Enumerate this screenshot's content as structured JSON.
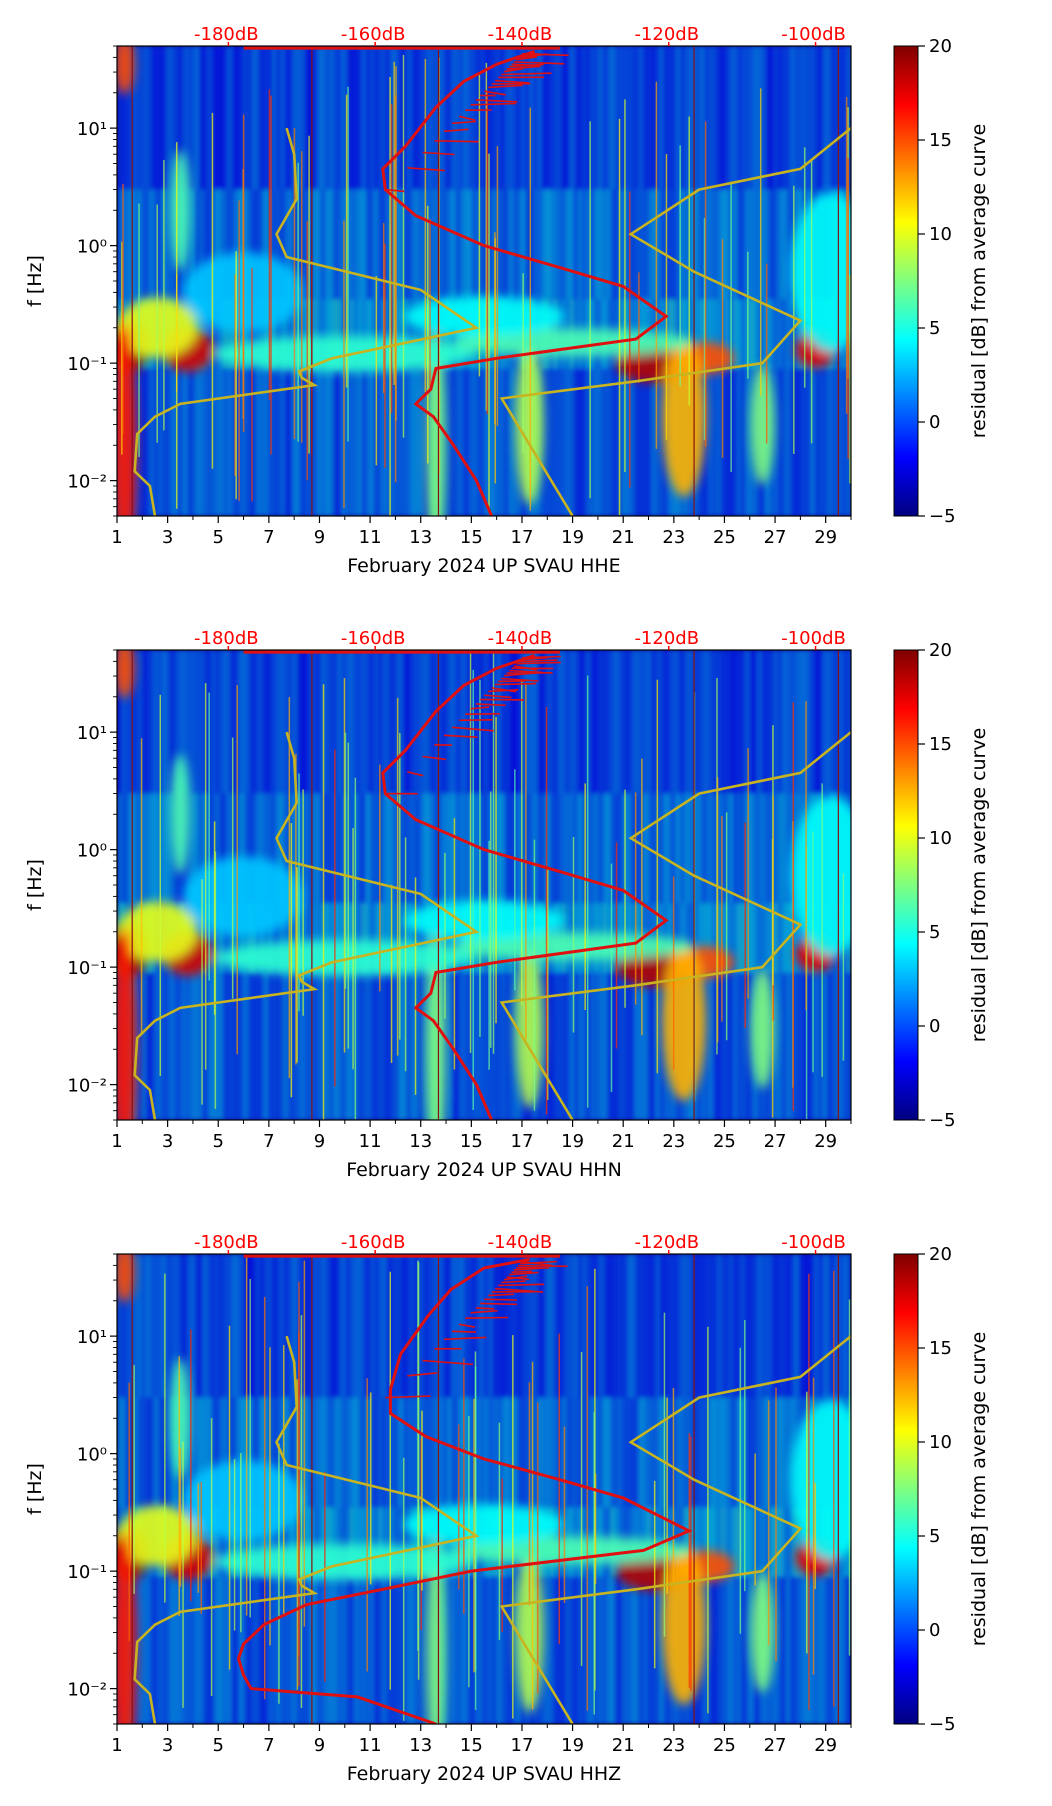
{
  "colors": {
    "db_labels": "#ff0000",
    "nlnm_curve": "#e01010",
    "nhnm_curve": "#c8b420",
    "axis": "#000000"
  },
  "chart_data": [
    {
      "type": "heatmap",
      "channel": "HHE",
      "xlabel": "February 2024 UP SVAU  HHE",
      "ylabel": "f [Hz]",
      "x_ticks": [
        "1",
        "3",
        "5",
        "7",
        "9",
        "11",
        "13",
        "15",
        "17",
        "19",
        "21",
        "23",
        "25",
        "27",
        "29"
      ],
      "x_range": [
        1,
        30
      ],
      "y_ticks": [
        "10⁻²",
        "10⁻¹",
        "10⁰",
        "10¹"
      ],
      "y_range_hz": [
        0.005,
        50
      ],
      "y_scale": "log",
      "top_db_labels": [
        "-180dB",
        "-160dB",
        "-140dB",
        "-120dB",
        "-100dB"
      ],
      "colorbar_label": "residual [dB] from average curve",
      "colorbar_ticks": [
        "20",
        "15",
        "10",
        "5",
        "0",
        "−5"
      ],
      "colorbar_range": [
        -5,
        20
      ],
      "colormap": "jet"
    },
    {
      "type": "heatmap",
      "channel": "HHN",
      "xlabel": "February 2024 UP SVAU  HHN",
      "ylabel": "f [Hz]",
      "x_ticks": [
        "1",
        "3",
        "5",
        "7",
        "9",
        "11",
        "13",
        "15",
        "17",
        "19",
        "21",
        "23",
        "25",
        "27",
        "29"
      ],
      "x_range": [
        1,
        30
      ],
      "y_ticks": [
        "10⁻²",
        "10⁻¹",
        "10⁰",
        "10¹"
      ],
      "y_range_hz": [
        0.005,
        50
      ],
      "y_scale": "log",
      "top_db_labels": [
        "-180dB",
        "-160dB",
        "-140dB",
        "-120dB",
        "-100dB"
      ],
      "colorbar_label": "residual [dB] from average curve",
      "colorbar_ticks": [
        "20",
        "15",
        "10",
        "5",
        "0",
        "−5"
      ],
      "colorbar_range": [
        -5,
        20
      ],
      "colormap": "jet"
    },
    {
      "type": "heatmap",
      "channel": "HHZ",
      "xlabel": "February 2024 UP SVAU  HHZ",
      "ylabel": "f [Hz]",
      "x_ticks": [
        "1",
        "3",
        "5",
        "7",
        "9",
        "11",
        "13",
        "15",
        "17",
        "19",
        "21",
        "23",
        "25",
        "27",
        "29"
      ],
      "x_range": [
        1,
        30
      ],
      "y_ticks": [
        "10⁻²",
        "10⁻¹",
        "10⁰",
        "10¹"
      ],
      "y_range_hz": [
        0.005,
        50
      ],
      "y_scale": "log",
      "top_db_labels": [
        "-180dB",
        "-160dB",
        "-140dB",
        "-120dB",
        "-100dB"
      ],
      "colorbar_label": "residual [dB] from average curve",
      "colorbar_ticks": [
        "20",
        "15",
        "10",
        "5",
        "0",
        "−5"
      ],
      "colorbar_range": [
        -5,
        20
      ],
      "colormap": "jet"
    }
  ]
}
